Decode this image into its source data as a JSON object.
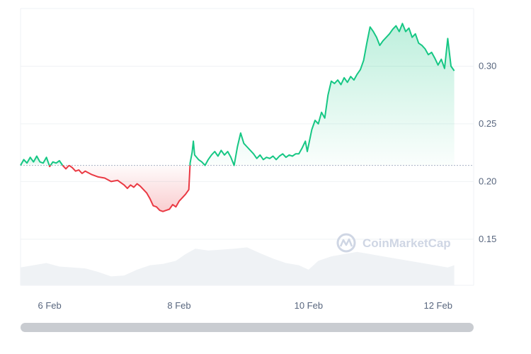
{
  "watermark": "CoinMarketCap",
  "chart_data": {
    "type": "area",
    "xlabel": "",
    "ylabel": "",
    "x_tick_labels": [
      "6 Feb",
      "8 Feb",
      "10 Feb",
      "12 Feb"
    ],
    "x_tick_positions_days": [
      5.55,
      7.55,
      9.55,
      11.55
    ],
    "y_ticks": [
      0.15,
      0.2,
      0.25,
      0.3
    ],
    "ylim": [
      0.11,
      0.35
    ],
    "xlim_days": [
      5.1,
      12.1
    ],
    "baseline_price": 0.214,
    "grid": true,
    "y_axis_side": "right",
    "colors": {
      "up": "#16c784",
      "down": "#ea3943",
      "volume": "#eff2f5"
    },
    "price_series": {
      "name": "",
      "points": [
        [
          5.1,
          0.214
        ],
        [
          5.15,
          0.219
        ],
        [
          5.2,
          0.216
        ],
        [
          5.25,
          0.221
        ],
        [
          5.3,
          0.217
        ],
        [
          5.35,
          0.222
        ],
        [
          5.4,
          0.217
        ],
        [
          5.45,
          0.216
        ],
        [
          5.5,
          0.221
        ],
        [
          5.55,
          0.213
        ],
        [
          5.6,
          0.217
        ],
        [
          5.65,
          0.216
        ],
        [
          5.7,
          0.218
        ],
        [
          5.75,
          0.214
        ],
        [
          5.8,
          0.211
        ],
        [
          5.85,
          0.214
        ],
        [
          5.9,
          0.212
        ],
        [
          5.95,
          0.209
        ],
        [
          6.0,
          0.21
        ],
        [
          6.05,
          0.207
        ],
        [
          6.1,
          0.209
        ],
        [
          6.2,
          0.206
        ],
        [
          6.3,
          0.204
        ],
        [
          6.4,
          0.203
        ],
        [
          6.5,
          0.2
        ],
        [
          6.6,
          0.201
        ],
        [
          6.7,
          0.197
        ],
        [
          6.75,
          0.194
        ],
        [
          6.8,
          0.197
        ],
        [
          6.85,
          0.195
        ],
        [
          6.9,
          0.198
        ],
        [
          6.95,
          0.196
        ],
        [
          7.0,
          0.193
        ],
        [
          7.05,
          0.19
        ],
        [
          7.1,
          0.185
        ],
        [
          7.15,
          0.179
        ],
        [
          7.2,
          0.178
        ],
        [
          7.25,
          0.175
        ],
        [
          7.3,
          0.174
        ],
        [
          7.35,
          0.175
        ],
        [
          7.4,
          0.176
        ],
        [
          7.45,
          0.18
        ],
        [
          7.5,
          0.178
        ],
        [
          7.55,
          0.183
        ],
        [
          7.6,
          0.186
        ],
        [
          7.65,
          0.189
        ],
        [
          7.7,
          0.193
        ],
        [
          7.72,
          0.216
        ],
        [
          7.75,
          0.225
        ],
        [
          7.77,
          0.235
        ],
        [
          7.79,
          0.223
        ],
        [
          7.85,
          0.219
        ],
        [
          7.9,
          0.217
        ],
        [
          7.95,
          0.214
        ],
        [
          8.0,
          0.219
        ],
        [
          8.05,
          0.223
        ],
        [
          8.1,
          0.226
        ],
        [
          8.15,
          0.222
        ],
        [
          8.2,
          0.227
        ],
        [
          8.25,
          0.223
        ],
        [
          8.3,
          0.226
        ],
        [
          8.35,
          0.221
        ],
        [
          8.4,
          0.214
        ],
        [
          8.45,
          0.23
        ],
        [
          8.5,
          0.242
        ],
        [
          8.55,
          0.233
        ],
        [
          8.6,
          0.23
        ],
        [
          8.65,
          0.227
        ],
        [
          8.7,
          0.224
        ],
        [
          8.75,
          0.22
        ],
        [
          8.8,
          0.223
        ],
        [
          8.85,
          0.219
        ],
        [
          8.9,
          0.221
        ],
        [
          8.95,
          0.22
        ],
        [
          9.0,
          0.222
        ],
        [
          9.05,
          0.219
        ],
        [
          9.1,
          0.222
        ],
        [
          9.15,
          0.224
        ],
        [
          9.2,
          0.221
        ],
        [
          9.25,
          0.223
        ],
        [
          9.3,
          0.222
        ],
        [
          9.35,
          0.224
        ],
        [
          9.4,
          0.224
        ],
        [
          9.45,
          0.229
        ],
        [
          9.5,
          0.235
        ],
        [
          9.53,
          0.226
        ],
        [
          9.6,
          0.245
        ],
        [
          9.65,
          0.253
        ],
        [
          9.7,
          0.25
        ],
        [
          9.75,
          0.26
        ],
        [
          9.8,
          0.255
        ],
        [
          9.85,
          0.275
        ],
        [
          9.9,
          0.287
        ],
        [
          9.95,
          0.285
        ],
        [
          10.0,
          0.288
        ],
        [
          10.05,
          0.284
        ],
        [
          10.1,
          0.29
        ],
        [
          10.15,
          0.286
        ],
        [
          10.2,
          0.291
        ],
        [
          10.25,
          0.288
        ],
        [
          10.3,
          0.293
        ],
        [
          10.35,
          0.297
        ],
        [
          10.4,
          0.305
        ],
        [
          10.45,
          0.32
        ],
        [
          10.5,
          0.334
        ],
        [
          10.55,
          0.33
        ],
        [
          10.6,
          0.325
        ],
        [
          10.65,
          0.318
        ],
        [
          10.7,
          0.322
        ],
        [
          10.75,
          0.325
        ],
        [
          10.8,
          0.328
        ],
        [
          10.85,
          0.332
        ],
        [
          10.9,
          0.335
        ],
        [
          10.95,
          0.33
        ],
        [
          11.0,
          0.337
        ],
        [
          11.05,
          0.33
        ],
        [
          11.1,
          0.333
        ],
        [
          11.15,
          0.325
        ],
        [
          11.2,
          0.328
        ],
        [
          11.25,
          0.32
        ],
        [
          11.3,
          0.318
        ],
        [
          11.35,
          0.315
        ],
        [
          11.4,
          0.31
        ],
        [
          11.45,
          0.312
        ],
        [
          11.5,
          0.307
        ],
        [
          11.55,
          0.301
        ],
        [
          11.6,
          0.306
        ],
        [
          11.65,
          0.298
        ],
        [
          11.7,
          0.324
        ],
        [
          11.75,
          0.3
        ],
        [
          11.8,
          0.296
        ]
      ]
    },
    "volume_series": {
      "name": "",
      "points": [
        [
          5.1,
          0.4
        ],
        [
          5.3,
          0.45
        ],
        [
          5.5,
          0.5
        ],
        [
          5.7,
          0.42
        ],
        [
          5.9,
          0.4
        ],
        [
          6.1,
          0.38
        ],
        [
          6.3,
          0.3
        ],
        [
          6.5,
          0.2
        ],
        [
          6.7,
          0.22
        ],
        [
          6.9,
          0.35
        ],
        [
          7.1,
          0.45
        ],
        [
          7.3,
          0.48
        ],
        [
          7.5,
          0.55
        ],
        [
          7.65,
          0.7
        ],
        [
          7.8,
          0.82
        ],
        [
          8.0,
          0.78
        ],
        [
          8.2,
          0.8
        ],
        [
          8.4,
          0.82
        ],
        [
          8.6,
          0.85
        ],
        [
          8.8,
          0.72
        ],
        [
          9.0,
          0.6
        ],
        [
          9.2,
          0.5
        ],
        [
          9.4,
          0.45
        ],
        [
          9.55,
          0.35
        ],
        [
          9.7,
          0.55
        ],
        [
          9.9,
          0.65
        ],
        [
          10.1,
          0.7
        ],
        [
          10.3,
          0.75
        ],
        [
          10.5,
          0.7
        ],
        [
          10.7,
          0.65
        ],
        [
          10.9,
          0.6
        ],
        [
          11.1,
          0.55
        ],
        [
          11.3,
          0.5
        ],
        [
          11.5,
          0.45
        ],
        [
          11.7,
          0.4
        ],
        [
          11.8,
          0.45
        ]
      ]
    }
  }
}
